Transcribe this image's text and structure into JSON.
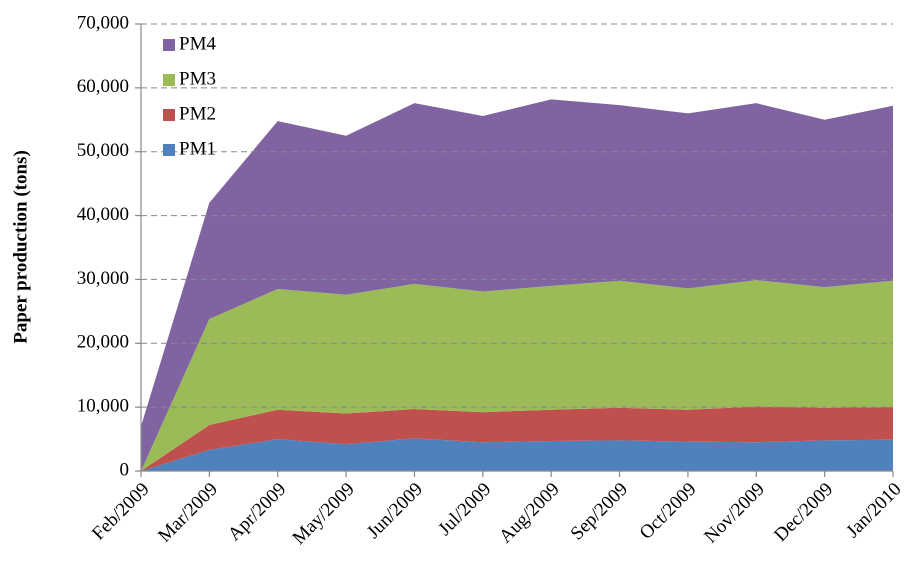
{
  "chart_data": {
    "type": "stacked_area",
    "y_axis_label": "Paper production  (tons)",
    "categories": [
      "Feb/2009",
      "Mar/2009",
      "Apr/2009",
      "May/2009",
      "Jun/2009",
      "Jul/2009",
      "Aug/2009",
      "Sep/2009",
      "Oct/2009",
      "Nov/2009",
      "Dec/2009",
      "Jan/2010"
    ],
    "series": [
      {
        "name": "PM1",
        "color": "#4f81bd",
        "values": [
          0,
          3300,
          5000,
          4200,
          5100,
          4500,
          4700,
          4800,
          4600,
          4500,
          4800,
          4900
        ]
      },
      {
        "name": "PM2",
        "color": "#c0504d",
        "values": [
          0,
          3900,
          4600,
          4800,
          4600,
          4700,
          4900,
          5100,
          5000,
          5600,
          5100,
          5100
        ]
      },
      {
        "name": "PM3",
        "color": "#9bbb59",
        "values": [
          0,
          16600,
          18900,
          18600,
          19600,
          18900,
          19400,
          19900,
          19000,
          19800,
          18900,
          19800
        ]
      },
      {
        "name": "PM4",
        "color": "#8064a2",
        "values": [
          7000,
          18200,
          26300,
          24900,
          28300,
          27500,
          29200,
          27500,
          27400,
          27700,
          26200,
          27400
        ]
      }
    ],
    "ylim": [
      0,
      70000
    ],
    "yticks": [
      0,
      {
        "value": 10000,
        "label": "10,000"
      },
      {
        "value": 20000,
        "label": "20,000"
      },
      {
        "value": 30000,
        "label": "30,000"
      },
      {
        "value": 40000,
        "label": "40,000"
      },
      {
        "value": 50000,
        "label": "50,000"
      },
      {
        "value": 60000,
        "label": "60,000"
      },
      {
        "value": 70000,
        "label": "70,000"
      }
    ],
    "grid": true,
    "legend": "top-left"
  }
}
